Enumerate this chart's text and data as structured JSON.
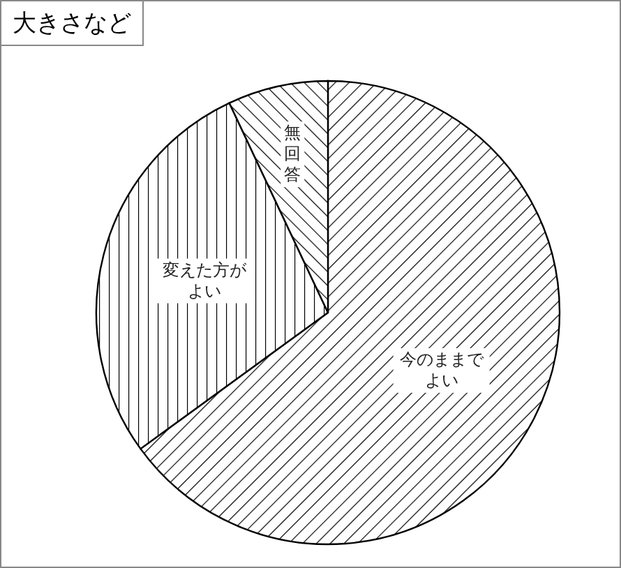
{
  "chart_data": {
    "type": "pie",
    "title": "大きさなど",
    "categories": [
      "今のままでよい",
      "変えた方がよい",
      "無回答"
    ],
    "values": [
      65,
      28,
      7
    ],
    "colors": [
      "#000000",
      "#000000",
      "#000000"
    ],
    "legend": false
  }
}
